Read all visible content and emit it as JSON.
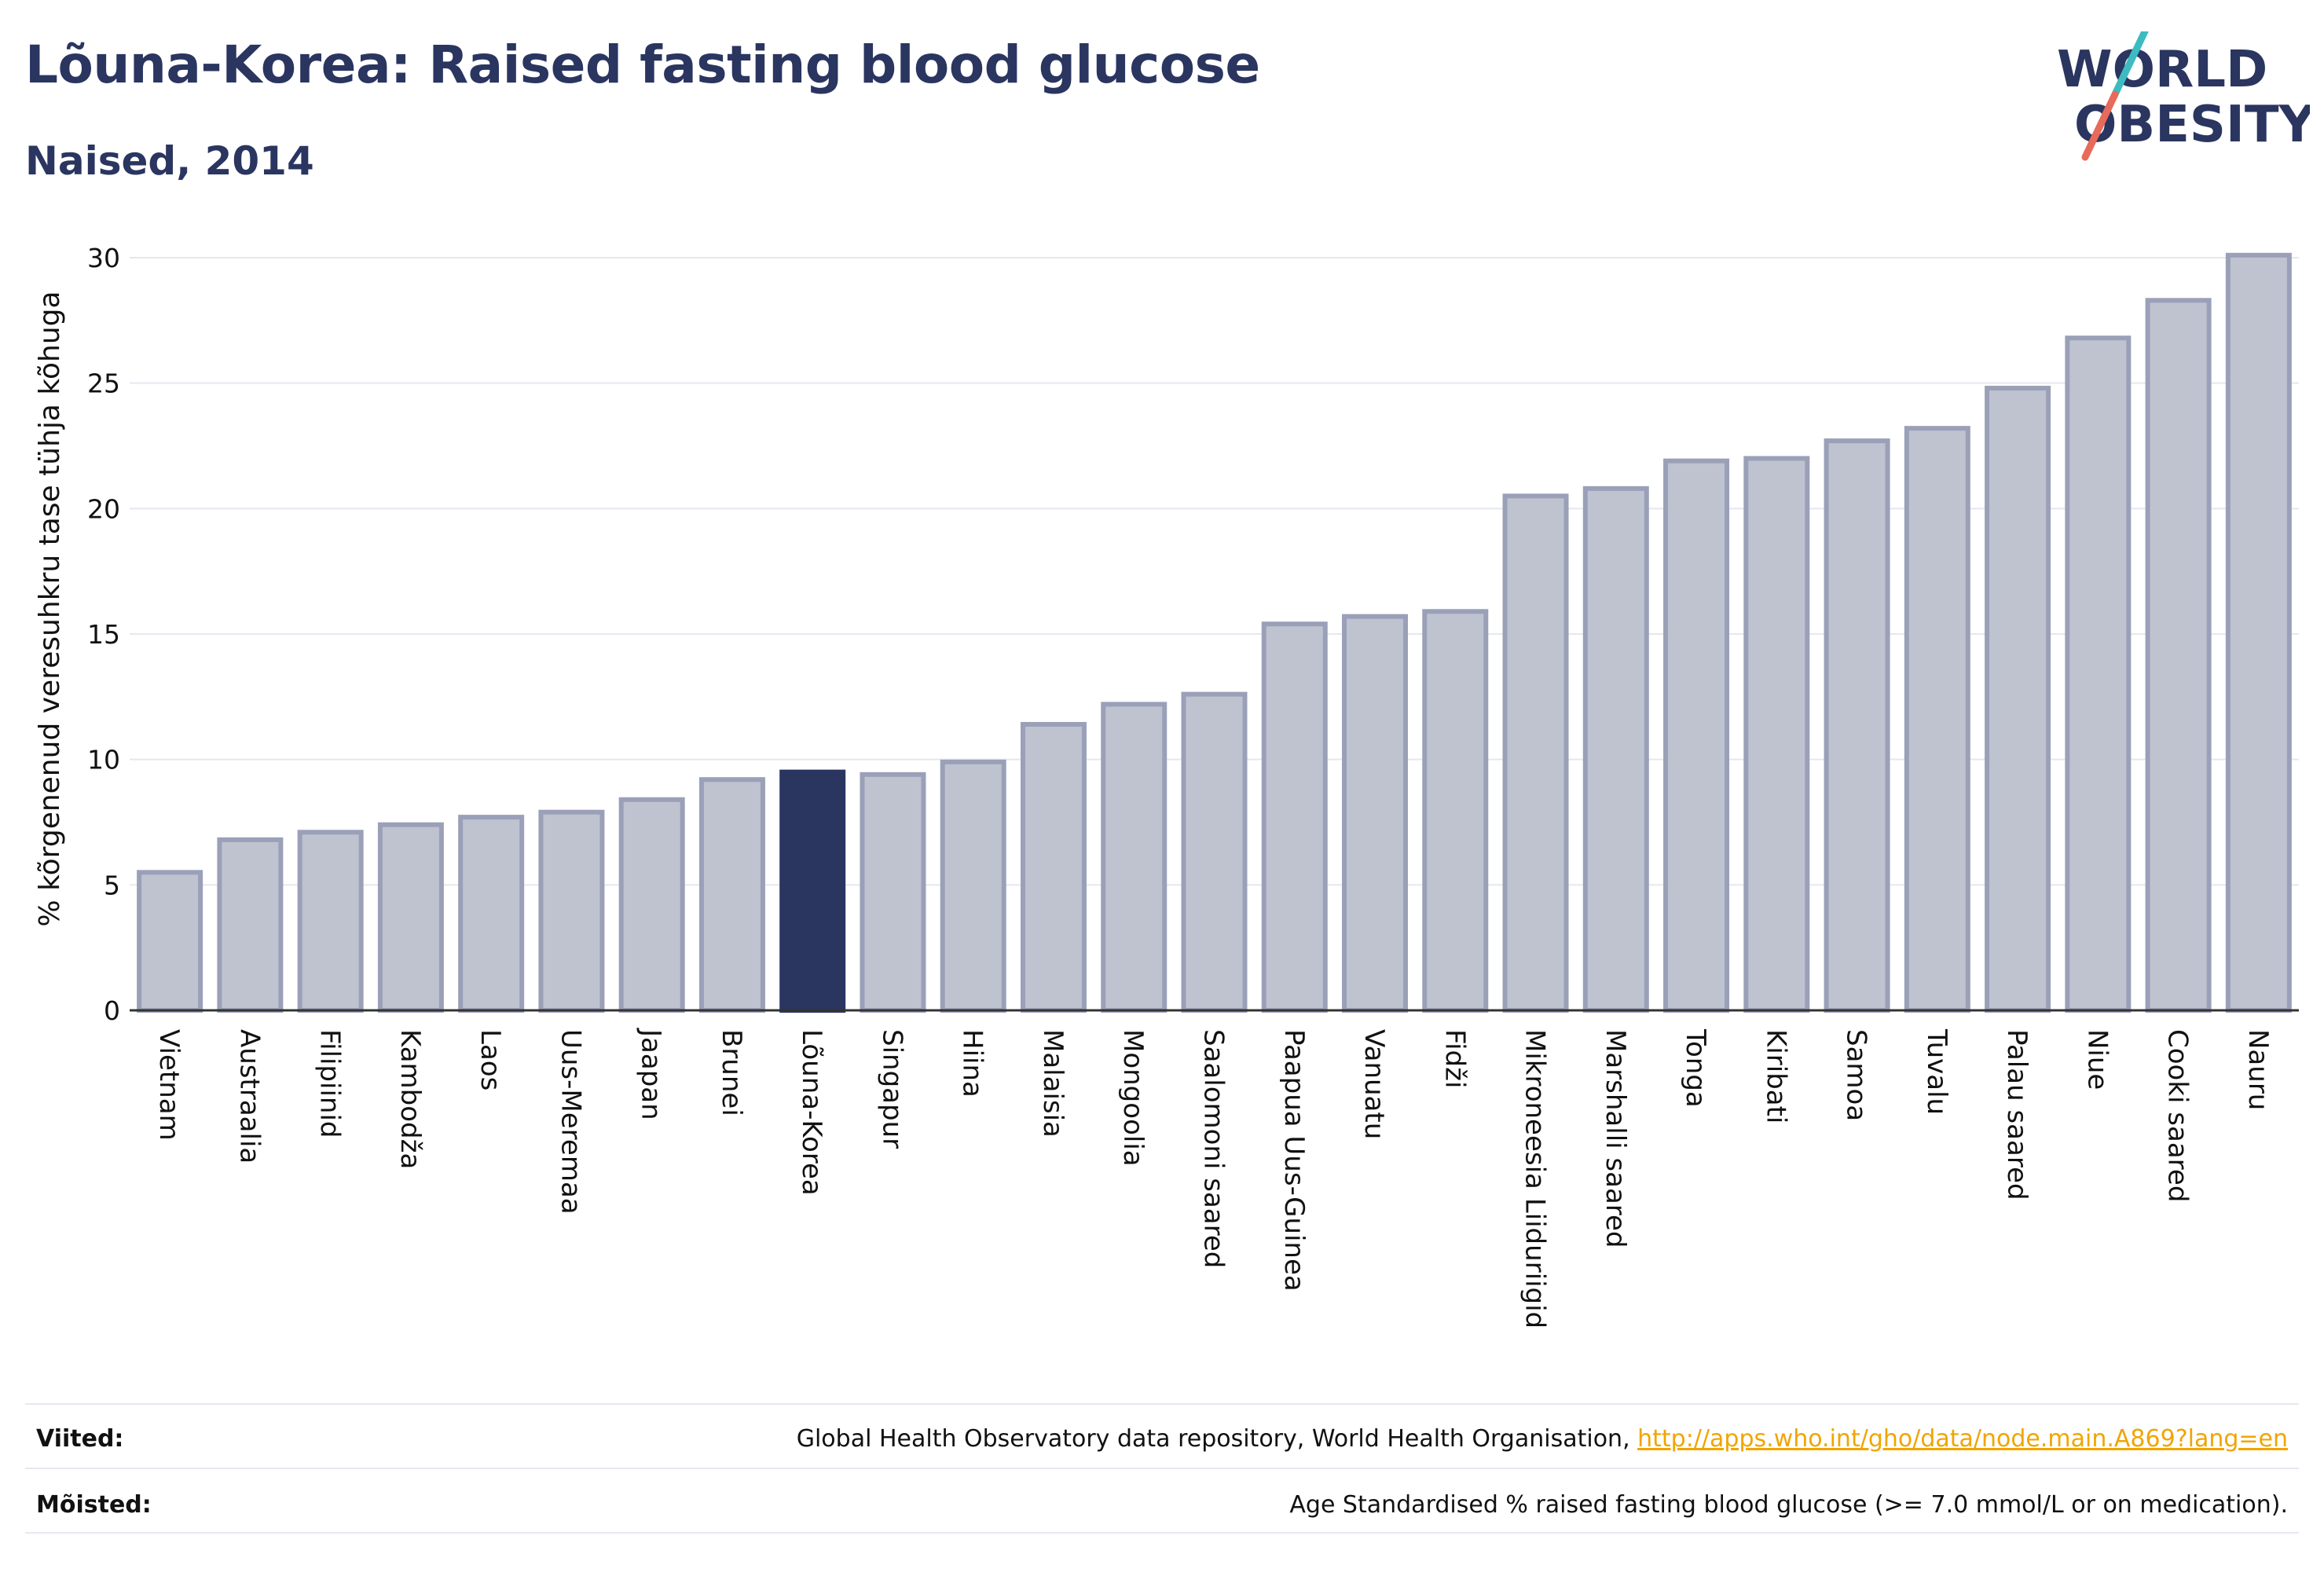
{
  "header": {
    "title": "Lõuna-Korea: Raised fasting blood glucose",
    "subtitle": "Naised, 2014"
  },
  "logo": {
    "line1": "WORLD",
    "line2": "OBESITY",
    "colors": {
      "text": "#2a3560",
      "slash_top": "#3cbcc0",
      "slash_bottom": "#e86a5a"
    }
  },
  "chart_data": {
    "type": "bar",
    "ylabel": "% kõrgenenud veresuhkru tase tühja kõhuga",
    "xlabel": "",
    "ylim": [
      0,
      30
    ],
    "yticks": [
      0,
      5,
      10,
      15,
      20,
      25,
      30
    ],
    "grid": true,
    "highlight": "Lõuna-Korea",
    "colors": {
      "bar": "#bfc3d0",
      "bar_border": "#9aa0b8",
      "highlight": "#2a3560",
      "grid": "#e6e8ef",
      "axis": "#333333"
    },
    "categories": [
      "Vietnam",
      "Austraalia",
      "Filipiinid",
      "Kambodža",
      "Laos",
      "Uus-Meremaa",
      "Jaapan",
      "Brunei",
      "Lõuna-Korea",
      "Singapur",
      "Hiina",
      "Malaisia",
      "Mongoolia",
      "Saalomoni saared",
      "Paapua Uus-Guinea",
      "Vanuatu",
      "Fidži",
      "Mikroneesia Liiduriigid",
      "Marshalli saared",
      "Tonga",
      "Kiribati",
      "Samoa",
      "Tuvalu",
      "Palau saared",
      "Niue",
      "Cooki saared",
      "Nauru"
    ],
    "values": [
      5.5,
      6.8,
      7.1,
      7.4,
      7.7,
      7.9,
      8.4,
      9.2,
      9.5,
      9.4,
      9.9,
      11.4,
      12.2,
      12.6,
      15.4,
      15.7,
      15.9,
      20.5,
      20.8,
      21.9,
      22.0,
      22.7,
      23.2,
      24.8,
      26.8,
      28.3,
      30.1
    ]
  },
  "footer": {
    "sources_label": "Viited:",
    "sources_text": "Global Health Observatory data repository, World Health Organisation, ",
    "sources_link": "http://apps.who.int/gho/data/node.main.A869?lang=en",
    "definitions_label": "Mõisted:",
    "definitions_text": "Age Standardised % raised fasting blood glucose (>= 7.0 mmol/L or on medication)."
  }
}
